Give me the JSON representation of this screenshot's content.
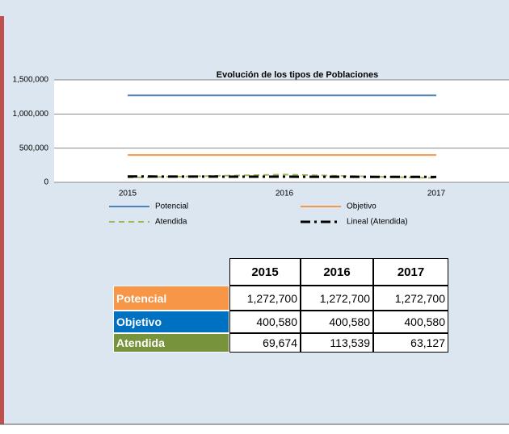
{
  "chart_data": {
    "type": "line",
    "title": "Evolución de los tipos de Poblaciones",
    "categories": [
      "2015",
      "2016",
      "2017"
    ],
    "series": [
      {
        "name": "Potencial",
        "color": "#4f81bd",
        "dash": "none",
        "values": [
          1272700,
          1272700,
          1272700
        ]
      },
      {
        "name": "Objetivo",
        "color": "#f79646",
        "dash": "none",
        "values": [
          400580,
          400580,
          400580
        ]
      },
      {
        "name": "Atendida",
        "color": "#9bbb59",
        "dash": "7 5",
        "values": [
          69674,
          113539,
          63127
        ]
      },
      {
        "name": "Lineal (Atendida)",
        "color": "#000000",
        "dash": "12 5 3 5",
        "values": [
          85387,
          82113,
          78840
        ]
      }
    ],
    "ylim": [
      0,
      1500000
    ],
    "yticks": [
      0,
      {
        "value": 500000,
        "label": "500,000"
      },
      {
        "value": 1000000,
        "label": "1,000,000"
      },
      {
        "value": 1500000,
        "label": "1,500,000"
      }
    ],
    "grid": true,
    "legend": "bottom"
  },
  "table": {
    "header": [
      "2015",
      "2016",
      "2017"
    ],
    "rows": [
      {
        "label": "Potencial",
        "color": "#f79646",
        "cells": [
          "1,272,700",
          "1,272,700",
          "1,272,700"
        ]
      },
      {
        "label": "Objetivo",
        "color": "#0070c0",
        "cells": [
          "400,580",
          "400,580",
          "400,580"
        ]
      },
      {
        "label": "Atendida",
        "color": "#77933c",
        "cells": [
          "69,674",
          "113,539",
          "63,127"
        ]
      }
    ]
  }
}
